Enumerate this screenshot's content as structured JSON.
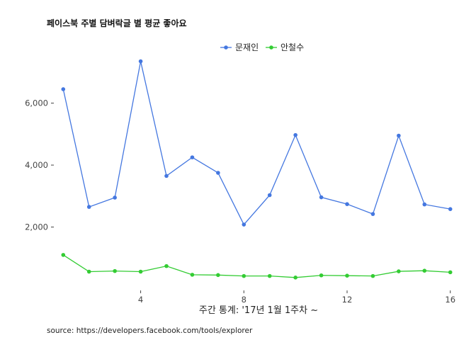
{
  "chart_data": {
    "type": "line",
    "title": "페이스북 주별 담벼락글 별 평균 좋아요",
    "xlabel": "주간 통계: '17년 1월 1주차 ~",
    "ylabel": "",
    "caption": "source: https://developers.facebook.com/tools/explorer",
    "x": [
      1,
      2,
      3,
      4,
      5,
      6,
      7,
      8,
      9,
      10,
      11,
      12,
      13,
      14,
      15,
      16
    ],
    "xlim": [
      0.8,
      16.2
    ],
    "ylim": [
      0,
      7500
    ],
    "x_ticks": [
      4,
      8,
      12,
      16
    ],
    "x_tick_labels": [
      "4",
      "8",
      "12",
      "16"
    ],
    "y_ticks": [
      2000,
      4000,
      6000
    ],
    "y_tick_labels": [
      "2,000",
      "4,000",
      "6,000"
    ],
    "grid": false,
    "legend_position": "top-right",
    "series": [
      {
        "name": "문재인",
        "color": "#4477e0",
        "values": [
          6450,
          2650,
          2950,
          7350,
          3650,
          4250,
          3750,
          2080,
          3030,
          4970,
          2960,
          2740,
          2420,
          4950,
          2730,
          2580
        ]
      },
      {
        "name": "안철수",
        "color": "#33cc33",
        "values": [
          1100,
          560,
          580,
          560,
          740,
          460,
          450,
          420,
          420,
          370,
          440,
          430,
          420,
          570,
          590,
          540
        ]
      }
    ]
  }
}
